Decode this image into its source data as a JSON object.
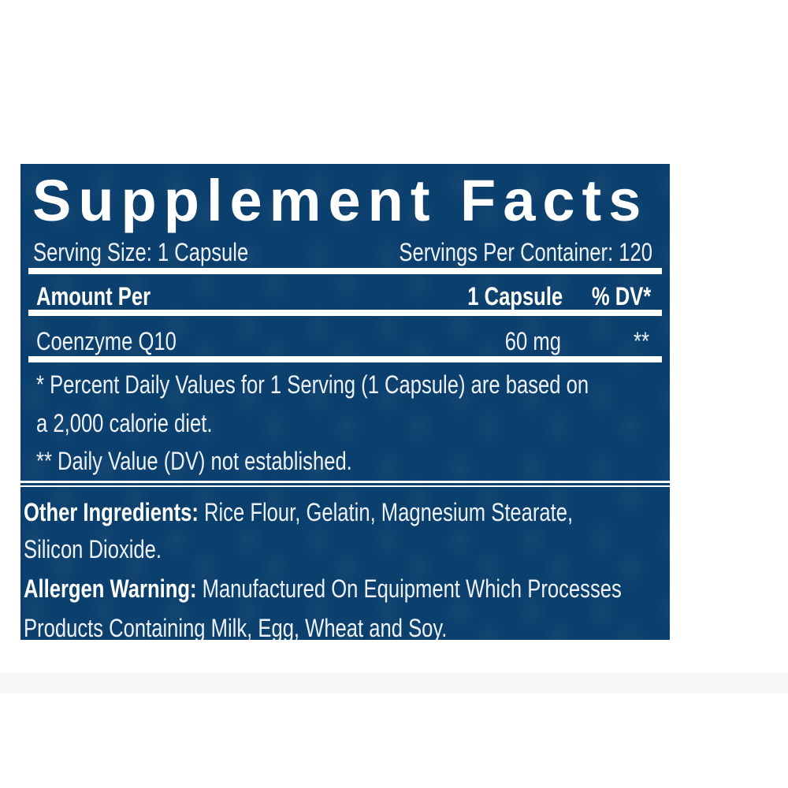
{
  "label": {
    "title": "Supplement Facts",
    "serving_size": "Serving Size: 1 Capsule",
    "servings_per_container": "Servings Per Container: 120",
    "header": {
      "amount_per": "Amount Per",
      "per_serving": "1 Capsule",
      "dv": "% DV*"
    },
    "ingredients": [
      {
        "name": "Coenzyme Q10",
        "amount": "60 mg",
        "dv": "**"
      }
    ],
    "footnotes": [
      "* Percent Daily Values for 1 Serving (1 Capsule) are based on",
      "a 2,000 calorie diet.",
      "** Daily Value (DV) not established."
    ],
    "other_ingredients_label": "Other Ingredients:",
    "other_ingredients_line1": "Rice Flour, Gelatin, Magnesium Stearate,",
    "other_ingredients_line2": "Silicon Dioxide.",
    "allergen_label": "Allergen Warning:",
    "allergen_line1": "Manufactured On Equipment Which Processes",
    "allergen_line2": "Products Containing Milk, Egg, Wheat and Soy."
  },
  "colors": {
    "label_background": "#0b3f6d",
    "text": "#ffffff",
    "band": "#f5f6f8"
  }
}
